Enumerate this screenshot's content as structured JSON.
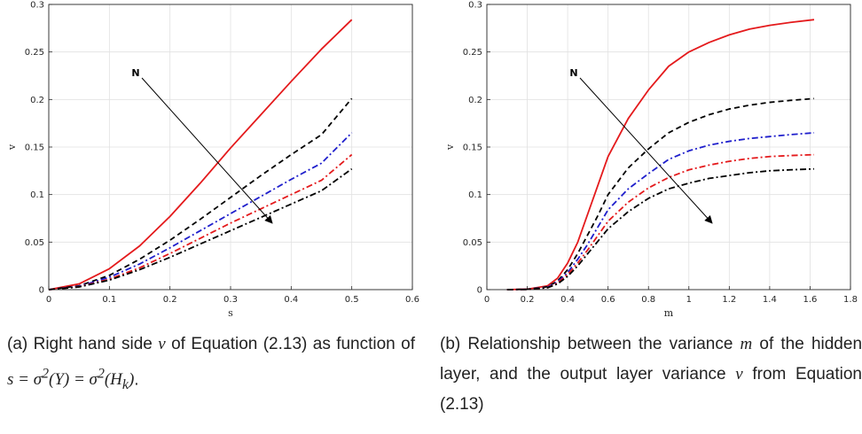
{
  "chart_data": [
    {
      "type": "line",
      "xlabel": "s",
      "ylabel": "v",
      "xlim": [
        0,
        0.6
      ],
      "ylim": [
        0,
        0.3
      ],
      "xticks": [
        "0",
        "0.1",
        "0.2",
        "0.3",
        "0.4",
        "0.5",
        "0.6"
      ],
      "yticks": [
        "0",
        "0.05",
        "0.1",
        "0.15",
        "0.2",
        "0.25",
        "0.3"
      ],
      "grid": true,
      "annotation": "N",
      "x": [
        0,
        0.05,
        0.1,
        0.15,
        0.2,
        0.25,
        0.3,
        0.35,
        0.4,
        0.45,
        0.5
      ],
      "series": [
        {
          "color": "#e41a1c",
          "dash": "solid",
          "values": [
            0,
            0.006,
            0.022,
            0.046,
            0.077,
            0.112,
            0.149,
            0.184,
            0.219,
            0.253,
            0.284
          ]
        },
        {
          "color": "#000000",
          "dash": "dashed",
          "values": [
            0,
            0.004,
            0.015,
            0.032,
            0.052,
            0.074,
            0.097,
            0.12,
            0.142,
            0.163,
            0.201
          ]
        },
        {
          "color": "#1f1fcc",
          "dash": "dashdot",
          "values": [
            0,
            0.0035,
            0.013,
            0.027,
            0.044,
            0.062,
            0.08,
            0.098,
            0.116,
            0.133,
            0.165
          ]
        },
        {
          "color": "#e41a1c",
          "dash": "dashdot",
          "values": [
            0,
            0.003,
            0.011,
            0.023,
            0.038,
            0.054,
            0.07,
            0.085,
            0.1,
            0.115,
            0.142
          ]
        },
        {
          "color": "#000000",
          "dash": "dashdot",
          "values": [
            0,
            0.0028,
            0.01,
            0.021,
            0.034,
            0.048,
            0.062,
            0.076,
            0.09,
            0.104,
            0.127
          ]
        }
      ]
    },
    {
      "type": "line",
      "xlabel": "m",
      "ylabel": "v",
      "xlim": [
        0,
        1.8
      ],
      "ylim": [
        0,
        0.3
      ],
      "xticks": [
        "0",
        "0.2",
        "0.4",
        "0.6",
        "0.8",
        "1",
        "1.2",
        "1.4",
        "1.6",
        "1.8"
      ],
      "yticks": [
        "0",
        "0.05",
        "0.1",
        "0.15",
        "0.2",
        "0.25",
        "0.3"
      ],
      "grid": true,
      "annotation": "N",
      "x": [
        0.1,
        0.2,
        0.3,
        0.35,
        0.4,
        0.45,
        0.5,
        0.55,
        0.6,
        0.7,
        0.8,
        0.9,
        1.0,
        1.1,
        1.2,
        1.3,
        1.4,
        1.5,
        1.62
      ],
      "series": [
        {
          "color": "#e41a1c",
          "dash": "solid",
          "values": [
            0,
            0.0005,
            0.004,
            0.012,
            0.028,
            0.05,
            0.08,
            0.11,
            0.14,
            0.18,
            0.21,
            0.235,
            0.25,
            0.26,
            0.268,
            0.274,
            0.278,
            0.281,
            0.284
          ]
        },
        {
          "color": "#000000",
          "dash": "dashed",
          "values": [
            0,
            0.0004,
            0.003,
            0.009,
            0.021,
            0.038,
            0.058,
            0.078,
            0.1,
            0.128,
            0.148,
            0.165,
            0.176,
            0.184,
            0.19,
            0.194,
            0.197,
            0.199,
            0.201
          ]
        },
        {
          "color": "#1f1fcc",
          "dash": "dashdot",
          "values": [
            0,
            0.0003,
            0.0025,
            0.008,
            0.018,
            0.032,
            0.048,
            0.066,
            0.084,
            0.106,
            0.122,
            0.137,
            0.146,
            0.152,
            0.156,
            0.159,
            0.161,
            0.163,
            0.165
          ]
        },
        {
          "color": "#e41a1c",
          "dash": "dashdot",
          "values": [
            0,
            0.0003,
            0.002,
            0.007,
            0.016,
            0.028,
            0.042,
            0.057,
            0.072,
            0.092,
            0.107,
            0.118,
            0.126,
            0.131,
            0.135,
            0.138,
            0.14,
            0.141,
            0.142
          ]
        },
        {
          "color": "#000000",
          "dash": "dashdot",
          "values": [
            0,
            0.0002,
            0.002,
            0.006,
            0.014,
            0.025,
            0.038,
            0.051,
            0.064,
            0.082,
            0.096,
            0.106,
            0.112,
            0.117,
            0.12,
            0.123,
            0.125,
            0.126,
            0.127
          ]
        }
      ]
    }
  ],
  "captions": {
    "a": {
      "prefix": "(a) Right hand side",
      "var_v": "v",
      "text1": "of Equation (2.13) as function of",
      "math": "s = σ²(Y) = σ²(H_k)",
      "suffix": "."
    },
    "b": {
      "prefix": "(b) Relationship between the variance",
      "var_m": "m",
      "text1": "of the hidden layer, and the output layer variance",
      "var_v": "v",
      "text2": "from Equation (2.13)"
    }
  }
}
